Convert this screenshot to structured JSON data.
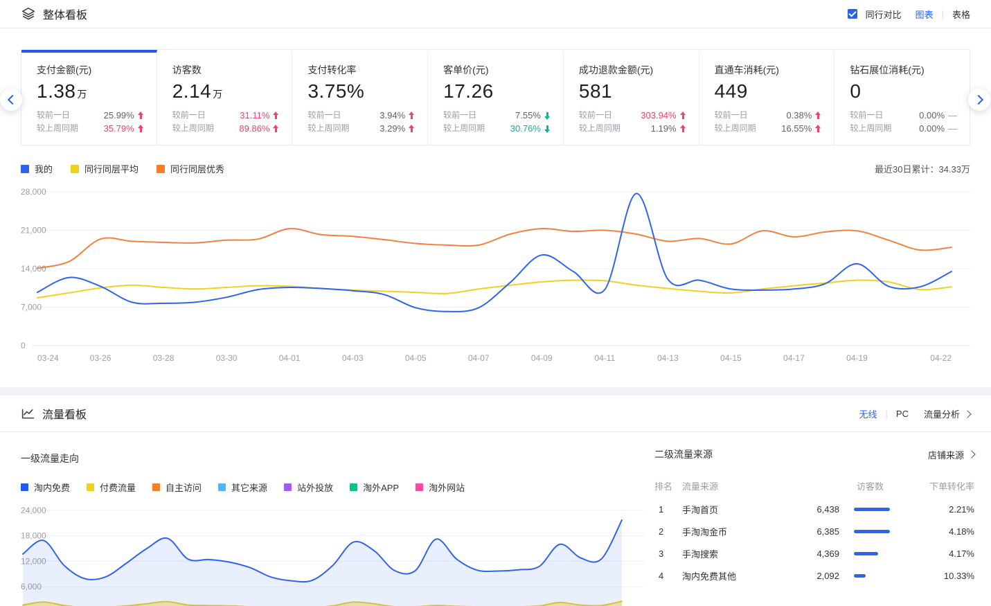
{
  "colors": {
    "accent_blue": "#2b62f6",
    "up_red": "#f0436a",
    "down_green": "#0bb98e",
    "my_line": "#2f63f0",
    "peer_avg_line": "#f2cf25",
    "peer_best_line": "#f5803c"
  },
  "overview": {
    "title": "整体看板",
    "peer_compare_label": "同行对比",
    "peer_compare_checked": true,
    "view_chart_label": "图表",
    "view_table_label": "表格",
    "cards": [
      {
        "title": "支付金额(元)",
        "value": "1.38",
        "unit": "万",
        "active": true,
        "rows": [
          {
            "label": "较前一日",
            "value": "25.99%",
            "dir": "up",
            "emph": "none"
          },
          {
            "label": "较上周同期",
            "value": "35.79%",
            "dir": "up",
            "emph": "red"
          }
        ]
      },
      {
        "title": "访客数",
        "value": "2.14",
        "unit": "万",
        "active": false,
        "rows": [
          {
            "label": "较前一日",
            "value": "31.11%",
            "dir": "up",
            "emph": "red"
          },
          {
            "label": "较上周同期",
            "value": "89.86%",
            "dir": "up",
            "emph": "red"
          }
        ]
      },
      {
        "title": "支付转化率",
        "value": "3.75%",
        "unit": "",
        "active": false,
        "rows": [
          {
            "label": "较前一日",
            "value": "3.94%",
            "dir": "up",
            "emph": "none"
          },
          {
            "label": "较上周同期",
            "value": "3.29%",
            "dir": "up",
            "emph": "none"
          }
        ]
      },
      {
        "title": "客单价(元)",
        "value": "17.26",
        "unit": "",
        "active": false,
        "rows": [
          {
            "label": "较前一日",
            "value": "7.55%",
            "dir": "down",
            "emph": "none"
          },
          {
            "label": "较上周同期",
            "value": "30.76%",
            "dir": "down",
            "emph": "green"
          }
        ]
      },
      {
        "title": "成功退款金额(元)",
        "value": "581",
        "unit": "",
        "active": false,
        "rows": [
          {
            "label": "较前一日",
            "value": "303.94%",
            "dir": "up",
            "emph": "red"
          },
          {
            "label": "较上周同期",
            "value": "1.19%",
            "dir": "up",
            "emph": "none"
          }
        ]
      },
      {
        "title": "直通车消耗(元)",
        "value": "449",
        "unit": "",
        "active": false,
        "rows": [
          {
            "label": "较前一日",
            "value": "0.38%",
            "dir": "up",
            "emph": "none"
          },
          {
            "label": "较上周同期",
            "value": "16.55%",
            "dir": "up",
            "emph": "none"
          }
        ]
      },
      {
        "title": "钻石展位消耗(元)",
        "value": "0",
        "unit": "",
        "active": false,
        "rows": [
          {
            "label": "较前一日",
            "value": "0.00%",
            "dir": "flat",
            "emph": "none"
          },
          {
            "label": "较上周同期",
            "value": "0.00%",
            "dir": "flat",
            "emph": "none"
          }
        ]
      }
    ],
    "legend": [
      {
        "label": "我的",
        "color": "#2d62f4"
      },
      {
        "label": "同行同层平均",
        "color": "#f0cf1f"
      },
      {
        "label": "同行同层优秀",
        "color": "#f57d28"
      }
    ],
    "summary_label": "最近30日累计：34.33万"
  },
  "traffic": {
    "title": "流量看板",
    "tab_wireless": "无线",
    "tab_pc": "PC",
    "analysis_label": "流量分析",
    "flow_title": "一级流量走向",
    "legend": [
      {
        "label": "淘内免费",
        "color": "#2558e9"
      },
      {
        "label": "付费流量",
        "color": "#eed21e"
      },
      {
        "label": "自主访问",
        "color": "#f58126"
      },
      {
        "label": "其它来源",
        "color": "#4db8f8"
      },
      {
        "label": "站外投放",
        "color": "#a65af0"
      },
      {
        "label": "淘外APP",
        "color": "#06c48f"
      },
      {
        "label": "淘外网站",
        "color": "#f54ba0"
      }
    ],
    "sources": {
      "title": "二级流量来源",
      "link_label": "店铺来源",
      "columns": {
        "rank": "排名",
        "source": "流量来源",
        "visitors": "访客数",
        "conversion": "下单转化率"
      },
      "rows": [
        {
          "rank": "1",
          "name": "手淘首页",
          "visitors": "6,438",
          "visitors_value": 6438,
          "conversion": "2.21%"
        },
        {
          "rank": "2",
          "name": "手淘淘金币",
          "visitors": "6,385",
          "visitors_value": 6385,
          "conversion": "4.18%"
        },
        {
          "rank": "3",
          "name": "手淘搜索",
          "visitors": "4,369",
          "visitors_value": 4369,
          "conversion": "4.17%"
        },
        {
          "rank": "4",
          "name": "淘内免费其他",
          "visitors": "2,092",
          "visitors_value": 2092,
          "conversion": "10.33%"
        }
      ]
    }
  },
  "chart_data": [
    {
      "type": "line",
      "title": "整体看板趋势",
      "grid": true,
      "legend_position": "top-left",
      "ylim": [
        0,
        28000
      ],
      "yticks": [
        {
          "v": 0,
          "label": "0"
        },
        {
          "v": 7000,
          "label": "7,000"
        },
        {
          "v": 14000,
          "label": "14,000"
        },
        {
          "v": 21000,
          "label": "21,000"
        },
        {
          "v": 28000,
          "label": "28,000"
        }
      ],
      "x": [
        "03-24",
        "03-25",
        "03-26",
        "03-27",
        "03-28",
        "03-29",
        "03-30",
        "03-31",
        "04-01",
        "04-02",
        "04-03",
        "04-04",
        "04-05",
        "04-06",
        "04-07",
        "04-08",
        "04-09",
        "04-10",
        "04-11",
        "04-12",
        "04-13",
        "04-14",
        "04-15",
        "04-16",
        "04-17",
        "04-18",
        "04-19",
        "04-20",
        "04-21",
        "04-22"
      ],
      "xtick_indices": [
        0,
        2,
        4,
        6,
        8,
        10,
        12,
        14,
        16,
        18,
        20,
        22,
        24,
        26,
        29
      ],
      "series": [
        {
          "name": "同行同层平均",
          "color": "#f2cf25",
          "values": [
            8700,
            9600,
            10500,
            11000,
            10600,
            10300,
            10600,
            10900,
            10800,
            10400,
            10100,
            9900,
            9700,
            9500,
            10300,
            11000,
            11600,
            11900,
            11800,
            11000,
            10400,
            9900,
            9600,
            10300,
            10900,
            11400,
            11900,
            11600,
            10200,
            10700
          ]
        },
        {
          "name": "同行同层优秀",
          "color": "#f5803c",
          "values": [
            14100,
            15300,
            19400,
            19000,
            18800,
            18700,
            19200,
            19400,
            21300,
            20200,
            19900,
            19300,
            18600,
            18300,
            18300,
            20300,
            21300,
            20800,
            21000,
            20300,
            19000,
            19500,
            18500,
            20900,
            19800,
            20700,
            20900,
            19200,
            17400,
            17900
          ]
        },
        {
          "name": "我的",
          "color": "#2f63f0",
          "values": [
            9700,
            12400,
            10800,
            7900,
            7700,
            7900,
            8800,
            10200,
            10600,
            10400,
            10000,
            9300,
            6900,
            6200,
            6900,
            11500,
            16500,
            13500,
            10200,
            27700,
            12100,
            11900,
            10300,
            10100,
            10300,
            11300,
            14900,
            10800,
            10700,
            13500
          ]
        }
      ]
    },
    {
      "type": "area",
      "title": "一级流量走向",
      "grid": true,
      "ylim": [
        0,
        26000
      ],
      "yticks": [
        {
          "v": 6000,
          "label": "6,000"
        },
        {
          "v": 12000,
          "label": "12,000"
        },
        {
          "v": 18000,
          "label": "18,000"
        },
        {
          "v": 24000,
          "label": "24,000"
        }
      ],
      "x": [
        "03-24",
        "03-25",
        "03-26",
        "03-27",
        "03-28",
        "03-29",
        "03-30",
        "03-31",
        "04-01",
        "04-02",
        "04-03",
        "04-04",
        "04-05",
        "04-06",
        "04-07",
        "04-08",
        "04-09",
        "04-10",
        "04-11",
        "04-12",
        "04-13",
        "04-14",
        "04-15",
        "04-16",
        "04-17",
        "04-18",
        "04-19",
        "04-20",
        "04-21",
        "04-22"
      ],
      "series": [
        {
          "name": "付费流量",
          "color": "#e9cd28",
          "fill": "rgba(247,213,52,0.45)",
          "values": [
            1700,
            2400,
            1600,
            1100,
            1200,
            1500,
            2000,
            2500,
            1700,
            1600,
            1500,
            1300,
            1100,
            1000,
            1100,
            1500,
            2400,
            2000,
            1300,
            1300,
            1600,
            1400,
            1300,
            1200,
            1300,
            1500,
            2300,
            1700,
            1600,
            2600
          ]
        },
        {
          "name": "淘内免费",
          "color": "#2f63f0",
          "fill": "rgba(47,99,244,0.10)",
          "values": [
            13700,
            16900,
            11000,
            7900,
            8300,
            11500,
            15000,
            17400,
            12500,
            12400,
            11800,
            10500,
            8300,
            7400,
            7500,
            11000,
            16500,
            14500,
            9800,
            9800,
            17200,
            12500,
            9900,
            9700,
            10000,
            10800,
            16000,
            12800,
            12500,
            21700
          ]
        },
        {
          "name": "自主访问",
          "color": "#f58126",
          "values": null
        },
        {
          "name": "其它来源",
          "color": "#4db8f8",
          "values": null
        },
        {
          "name": "站外投放",
          "color": "#a65af0",
          "values": null
        },
        {
          "name": "淘外APP",
          "color": "#06c48f",
          "values": null
        },
        {
          "name": "淘外网站",
          "color": "#f54ba0",
          "values": null
        }
      ]
    }
  ]
}
